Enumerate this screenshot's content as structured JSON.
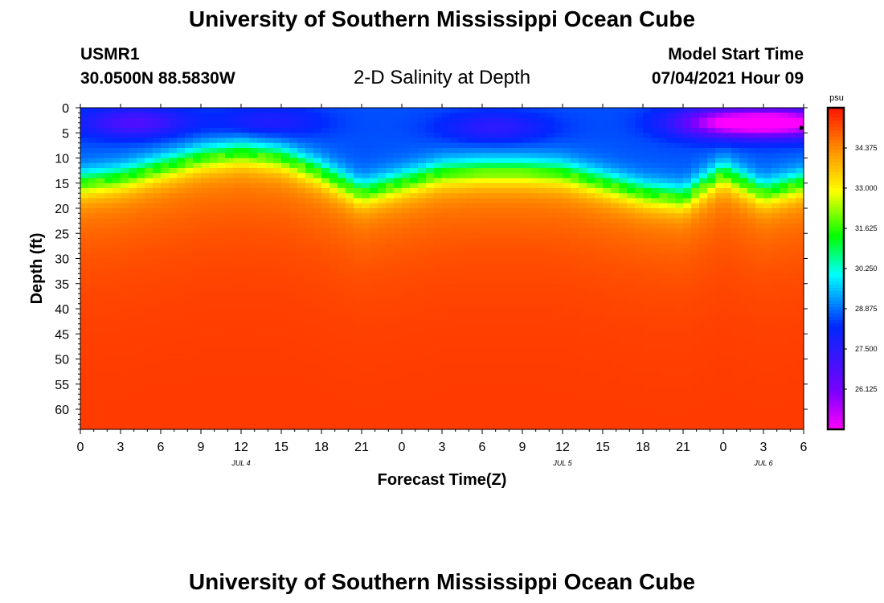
{
  "title": "University of Southern Mississippi Ocean Cube",
  "footer_title": "University of Southern Mississippi Ocean Cube",
  "station": {
    "name": "USMR1",
    "location": "30.0500N  88.5830W"
  },
  "plot_title": "2-D Salinity at Depth",
  "model_start": {
    "label": "Model Start Time",
    "value": "07/04/2021 Hour 09"
  },
  "chart_data": {
    "type": "heatmap",
    "title": "2-D Salinity at Depth",
    "xlabel": "Forecast Time(Z)",
    "ylabel": "Depth (ft)",
    "x_tick_labels": [
      "0",
      "3",
      "6",
      "9",
      "12",
      "15",
      "18",
      "21",
      "0",
      "3",
      "6",
      "9",
      "12",
      "15",
      "18",
      "21",
      "0",
      "3",
      "6"
    ],
    "x_range_hours": [
      0,
      54
    ],
    "date_labels": [
      {
        "text": "JUL 4",
        "hour": 12
      },
      {
        "text": "JUL 5",
        "hour": 36
      },
      {
        "text": "JUL 6",
        "hour": 51
      }
    ],
    "y_tick_labels": [
      "0",
      "5",
      "10",
      "15",
      "20",
      "25",
      "30",
      "35",
      "40",
      "45",
      "50",
      "55",
      "60"
    ],
    "y_range_ft": [
      0,
      64
    ],
    "colorbar": {
      "unit": "psu",
      "ticks": [
        "34.375",
        "33.000",
        "31.625",
        "30.250",
        "28.875",
        "27.500",
        "26.125"
      ],
      "tick_values": [
        34.375,
        33.0,
        31.625,
        30.25,
        28.875,
        27.5,
        26.125
      ],
      "range": [
        24.75,
        35.75
      ]
    },
    "halocline": {
      "description": "approximate depth (ft) of fresh/salty transition (~31 psu) at each 3-hour step",
      "hours": [
        0,
        3,
        6,
        9,
        12,
        15,
        18,
        21,
        24,
        27,
        30,
        33,
        36,
        39,
        42,
        45,
        48,
        51,
        54
      ],
      "depth_ft": [
        15,
        14,
        12,
        10,
        9,
        10,
        13,
        17,
        15,
        13,
        12.5,
        12.5,
        13,
        15,
        17,
        18,
        13,
        17,
        15
      ]
    },
    "surface_fresh_patches": [
      {
        "hour": 4,
        "depth_ft": 3,
        "psu": 26.8
      },
      {
        "hour": 14,
        "depth_ft": 3,
        "psu": 27.6
      },
      {
        "hour": 31,
        "depth_ft": 4,
        "psu": 27.4
      },
      {
        "hour": 48,
        "depth_ft": 3,
        "psu": 25.3
      },
      {
        "hour": 53,
        "depth_ft": 3,
        "psu": 25.0
      }
    ],
    "deep_psu": 35.3
  }
}
